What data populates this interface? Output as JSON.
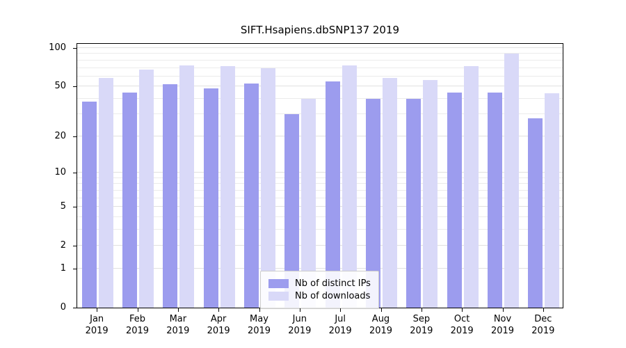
{
  "chart_data": {
    "type": "bar",
    "title": "SIFT.Hsapiens.dbSNP137 2019",
    "categories": [
      "Jan",
      "Feb",
      "Mar",
      "Apr",
      "May",
      "Jun",
      "Jul",
      "Aug",
      "Sep",
      "Oct",
      "Nov",
      "Dec"
    ],
    "year_label": "2019",
    "series": [
      {
        "name": "Nb of distinct IPs",
        "color": "#9c9cee",
        "values": [
          38,
          45,
          52,
          48,
          53,
          30,
          55,
          40,
          40,
          45,
          45,
          28
        ]
      },
      {
        "name": "Nb of downloads",
        "color": "#d9d9f8",
        "values": [
          58,
          68,
          73,
          72,
          70,
          40,
          73,
          58,
          56,
          72,
          90,
          44
        ]
      }
    ],
    "yscale": "log10(value+1)",
    "ylim": [
      0,
      100
    ],
    "yticks": [
      0,
      1,
      2,
      5,
      10,
      20,
      50,
      100
    ],
    "minor_gridlines": [
      3,
      4,
      6,
      7,
      8,
      9,
      30,
      40,
      60,
      70,
      80,
      90
    ],
    "legend_position": "bottom-center",
    "grid": true
  }
}
